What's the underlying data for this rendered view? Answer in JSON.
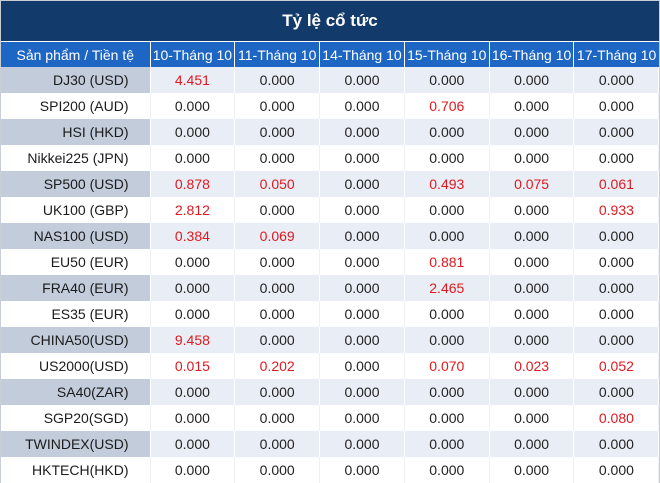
{
  "title": "Tỷ lệ cổ tức",
  "header": {
    "product_col": "Sản phẩm / Tiền tệ",
    "dates": [
      "10-Tháng 10",
      "11-Tháng 10",
      "14-Tháng 10",
      "15-Tháng 10",
      "16-Tháng 10",
      "17-Tháng 10"
    ]
  },
  "colors": {
    "title_bg": "#123a6b",
    "header_bg": "#1e66c4",
    "highlight": "#e0191f",
    "stripe": "#e9eef6",
    "product_stripe": "#c2ccda"
  },
  "rows": [
    {
      "product": "DJ30 (USD)",
      "values": [
        "4.451",
        "0.000",
        "0.000",
        "0.000",
        "0.000",
        "0.000"
      ]
    },
    {
      "product": "SPI200 (AUD)",
      "values": [
        "0.000",
        "0.000",
        "0.000",
        "0.706",
        "0.000",
        "0.000"
      ]
    },
    {
      "product": "HSI (HKD)",
      "values": [
        "0.000",
        "0.000",
        "0.000",
        "0.000",
        "0.000",
        "0.000"
      ]
    },
    {
      "product": "Nikkei225 (JPN)",
      "values": [
        "0.000",
        "0.000",
        "0.000",
        "0.000",
        "0.000",
        "0.000"
      ]
    },
    {
      "product": "SP500 (USD)",
      "values": [
        "0.878",
        "0.050",
        "0.000",
        "0.493",
        "0.075",
        "0.061"
      ]
    },
    {
      "product": "UK100 (GBP)",
      "values": [
        "2.812",
        "0.000",
        "0.000",
        "0.000",
        "0.000",
        "0.933"
      ]
    },
    {
      "product": "NAS100 (USD)",
      "values": [
        "0.384",
        "0.069",
        "0.000",
        "0.000",
        "0.000",
        "0.000"
      ]
    },
    {
      "product": "EU50 (EUR)",
      "values": [
        "0.000",
        "0.000",
        "0.000",
        "0.881",
        "0.000",
        "0.000"
      ]
    },
    {
      "product": "FRA40 (EUR)",
      "values": [
        "0.000",
        "0.000",
        "0.000",
        "2.465",
        "0.000",
        "0.000"
      ]
    },
    {
      "product": "ES35 (EUR)",
      "values": [
        "0.000",
        "0.000",
        "0.000",
        "0.000",
        "0.000",
        "0.000"
      ]
    },
    {
      "product": "CHINA50(USD)",
      "values": [
        "9.458",
        "0.000",
        "0.000",
        "0.000",
        "0.000",
        "0.000"
      ]
    },
    {
      "product": "US2000(USD)",
      "values": [
        "0.015",
        "0.202",
        "0.000",
        "0.070",
        "0.023",
        "0.052"
      ]
    },
    {
      "product": "SA40(ZAR)",
      "values": [
        "0.000",
        "0.000",
        "0.000",
        "0.000",
        "0.000",
        "0.000"
      ]
    },
    {
      "product": "SGP20(SGD)",
      "values": [
        "0.000",
        "0.000",
        "0.000",
        "0.000",
        "0.000",
        "0.080"
      ]
    },
    {
      "product": "TWINDEX(USD)",
      "values": [
        "0.000",
        "0.000",
        "0.000",
        "0.000",
        "0.000",
        "0.000"
      ]
    },
    {
      "product": "HKTECH(HKD)",
      "values": [
        "0.000",
        "0.000",
        "0.000",
        "0.000",
        "0.000",
        "0.000"
      ]
    }
  ]
}
